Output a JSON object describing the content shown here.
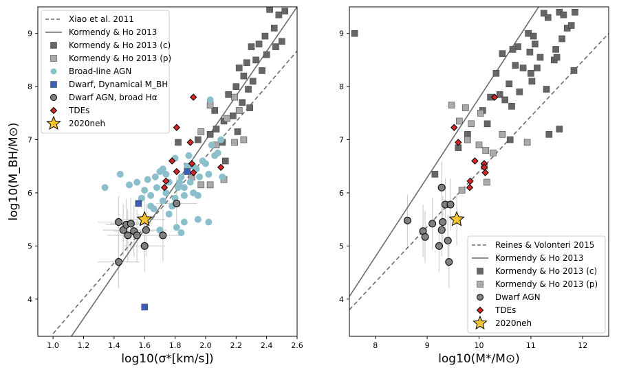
{
  "chart_data": [
    {
      "type": "scatter",
      "panel": "left",
      "xlabel": "log10(σ*[km/s])",
      "ylabel": "log10(M_BH/M⊙)",
      "xlim": [
        0.9,
        2.6
      ],
      "ylim": [
        3.3,
        9.5
      ],
      "xticks": [
        "1.0",
        "1.2",
        "1.4",
        "1.6",
        "1.8",
        "2.0",
        "2.2",
        "2.4",
        "2.6"
      ],
      "xtick_values": [
        1.0,
        1.2,
        1.4,
        1.6,
        1.8,
        2.0,
        2.2,
        2.4,
        2.6
      ],
      "yticks": [
        "4",
        "5",
        "6",
        "7",
        "8",
        "9"
      ],
      "ytick_values": [
        4,
        5,
        6,
        7,
        8,
        9
      ],
      "legend_position": "top-left",
      "lines": [
        {
          "name": "Xiao et al. 2011",
          "style": "dashed",
          "points": [
            [
              1.0,
              3.35
            ],
            [
              2.6,
              8.67
            ]
          ]
        },
        {
          "name": "Kormendy & Ho 2013",
          "style": "solid",
          "points": [
            [
              1.12,
              3.3
            ],
            [
              2.6,
              9.5
            ]
          ]
        }
      ],
      "series": [
        {
          "name": "Kormendy & Ho 2013 (c)",
          "marker": "square",
          "color": "#666666",
          "points": [
            [
              2.42,
              9.45
            ],
            [
              2.48,
              9.35
            ],
            [
              2.52,
              9.42
            ],
            [
              2.45,
              9.1
            ],
            [
              2.39,
              8.95
            ],
            [
              2.35,
              8.8
            ],
            [
              2.3,
              8.75
            ],
            [
              2.4,
              8.6
            ],
            [
              2.33,
              8.5
            ],
            [
              2.27,
              8.45
            ],
            [
              2.22,
              8.35
            ],
            [
              2.37,
              8.3
            ],
            [
              2.25,
              8.2
            ],
            [
              2.31,
              8.1
            ],
            [
              2.2,
              8.0
            ],
            [
              2.28,
              7.95
            ],
            [
              2.15,
              7.85
            ],
            [
              2.24,
              7.7
            ],
            [
              2.29,
              7.6
            ],
            [
              2.06,
              7.55
            ],
            [
              2.18,
              7.45
            ],
            [
              2.12,
              7.35
            ],
            [
              2.07,
              7.2
            ],
            [
              2.21,
              7.15
            ],
            [
              2.03,
              7.1
            ],
            [
              1.95,
              7.0
            ],
            [
              2.11,
              6.95
            ],
            [
              1.82,
              6.95
            ],
            [
              2.46,
              8.75
            ],
            [
              2.5,
              8.85
            ],
            [
              2.13,
              6.6
            ]
          ]
        },
        {
          "name": "Kormendy & Ho 2013 (p)",
          "marker": "square",
          "color": "#aaaaaa",
          "points": [
            [
              2.03,
              7.65
            ],
            [
              2.19,
              7.8
            ],
            [
              2.22,
              7.55
            ],
            [
              2.14,
              7.4
            ],
            [
              2.25,
              7.0
            ],
            [
              1.97,
              7.15
            ],
            [
              2.07,
              6.9
            ],
            [
              2.19,
              6.95
            ],
            [
              1.88,
              6.5
            ],
            [
              2.12,
              6.25
            ],
            [
              2.03,
              6.15
            ],
            [
              1.91,
              6.3
            ],
            [
              1.97,
              6.15
            ]
          ]
        },
        {
          "name": "Broad-line AGN",
          "marker": "circle",
          "color": "#8bbfcc",
          "points": [
            [
              1.34,
              6.1
            ],
            [
              1.44,
              6.35
            ],
            [
              1.5,
              6.15
            ],
            [
              1.55,
              6.2
            ],
            [
              1.6,
              6.05
            ],
            [
              1.62,
              6.25
            ],
            [
              1.64,
              5.95
            ],
            [
              1.66,
              5.7
            ],
            [
              1.68,
              6.1
            ],
            [
              1.7,
              6.4
            ],
            [
              1.72,
              5.85
            ],
            [
              1.74,
              6.0
            ],
            [
              1.76,
              6.2
            ],
            [
              1.78,
              5.75
            ],
            [
              1.8,
              5.9
            ],
            [
              1.82,
              6.1
            ],
            [
              1.84,
              6.3
            ],
            [
              1.86,
              5.95
            ],
            [
              1.88,
              6.5
            ],
            [
              1.9,
              6.2
            ],
            [
              1.92,
              6.0
            ],
            [
              1.94,
              6.45
            ],
            [
              1.96,
              6.3
            ],
            [
              1.98,
              6.6
            ],
            [
              2.0,
              6.55
            ],
            [
              2.02,
              6.35
            ],
            [
              2.04,
              6.9
            ],
            [
              2.06,
              6.7
            ],
            [
              2.08,
              6.75
            ],
            [
              2.1,
              7.0
            ],
            [
              1.76,
              5.6
            ],
            [
              1.7,
              5.3
            ],
            [
              1.86,
              5.45
            ],
            [
              1.95,
              5.5
            ],
            [
              2.02,
              5.45
            ],
            [
              1.81,
              5.35
            ],
            [
              1.84,
              5.25
            ],
            [
              1.72,
              6.45
            ],
            [
              1.83,
              6.2
            ],
            [
              1.86,
              6.1
            ],
            [
              1.89,
              6.7
            ],
            [
              1.58,
              5.9
            ],
            [
              1.64,
              5.75
            ],
            [
              1.74,
              6.35
            ],
            [
              2.11,
              6.3
            ],
            [
              1.92,
              6.5
            ],
            [
              1.8,
              6.65
            ],
            [
              2.03,
              7.75
            ],
            [
              1.95,
              5.95
            ],
            [
              1.67,
              6.3
            ]
          ]
        },
        {
          "name": "Dwarf, Dynamical M_BH",
          "marker": "square",
          "color": "#3b5fb5",
          "points": [
            [
              1.56,
              5.8
            ],
            [
              1.6,
              3.85
            ],
            [
              1.88,
              6.4
            ]
          ]
        },
        {
          "name": "Dwarf AGN, broad Hα",
          "marker": "circle",
          "color": "#808080",
          "points": [
            [
              1.43,
              5.45
            ],
            [
              1.46,
              5.3
            ],
            [
              1.48,
              5.4
            ],
            [
              1.49,
              5.2
            ],
            [
              1.51,
              5.42
            ],
            [
              1.53,
              5.28
            ],
            [
              1.55,
              5.2
            ],
            [
              1.6,
              5.0
            ],
            [
              1.61,
              5.3
            ],
            [
              1.72,
              5.2
            ],
            [
              1.81,
              5.8
            ],
            [
              1.43,
              4.7
            ]
          ]
        },
        {
          "name": "TDEs",
          "marker": "diamond",
          "color": "#d62728",
          "points": [
            [
              1.81,
              7.23
            ],
            [
              1.92,
              7.8
            ],
            [
              1.9,
              6.95
            ],
            [
              1.78,
              6.6
            ],
            [
              1.81,
              6.4
            ],
            [
              1.74,
              6.22
            ],
            [
              1.73,
              6.1
            ],
            [
              1.91,
              6.55
            ],
            [
              1.92,
              6.38
            ],
            [
              2.1,
              6.48
            ]
          ]
        },
        {
          "name": "2020neh",
          "marker": "star",
          "color": "#f4c430",
          "points": [
            [
              1.6,
              5.5
            ]
          ]
        }
      ]
    },
    {
      "type": "scatter",
      "panel": "right",
      "xlabel": "log10(M*/M⊙)",
      "ylabel": "",
      "xlim": [
        7.5,
        12.5
      ],
      "ylim": [
        3.3,
        9.5
      ],
      "xticks": [
        "8",
        "9",
        "10",
        "11",
        "12"
      ],
      "xtick_values": [
        8,
        9,
        10,
        11,
        12
      ],
      "yticks": [
        "4",
        "5",
        "6",
        "7",
        "8",
        "9"
      ],
      "ytick_values": [
        4,
        5,
        6,
        7,
        8,
        9
      ],
      "legend_position": "bottom-right",
      "lines": [
        {
          "name": "Reines & Volonteri 2015",
          "style": "dashed",
          "points": [
            [
              7.5,
              3.8
            ],
            [
              12.5,
              9.0
            ]
          ]
        },
        {
          "name": "Kormendy & Ho 2013",
          "style": "solid",
          "points": [
            [
              7.5,
              4.05
            ],
            [
              11.15,
              9.5
            ]
          ]
        }
      ],
      "series": [
        {
          "name": "Kormendy & Ho 2013 (c)",
          "marker": "square",
          "color": "#666666",
          "points": [
            [
              11.25,
              9.38
            ],
            [
              11.55,
              9.4
            ],
            [
              11.85,
              9.4
            ],
            [
              11.63,
              9.35
            ],
            [
              11.33,
              9.3
            ],
            [
              10.95,
              9.0
            ],
            [
              11.05,
              8.95
            ],
            [
              11.7,
              9.1
            ],
            [
              11.78,
              9.15
            ],
            [
              11.6,
              8.9
            ],
            [
              11.08,
              8.8
            ],
            [
              10.75,
              8.75
            ],
            [
              10.65,
              8.7
            ],
            [
              10.45,
              8.62
            ],
            [
              10.98,
              8.65
            ],
            [
              10.33,
              8.25
            ],
            [
              11.18,
              8.55
            ],
            [
              11.12,
              8.35
            ],
            [
              10.7,
              8.4
            ],
            [
              10.85,
              8.35
            ],
            [
              11.45,
              8.5
            ],
            [
              10.58,
              8.05
            ],
            [
              10.4,
              7.85
            ],
            [
              10.22,
              7.8
            ],
            [
              10.78,
              7.9
            ],
            [
              10.5,
              7.75
            ],
            [
              10.07,
              7.55
            ],
            [
              10.16,
              7.3
            ],
            [
              11.55,
              7.2
            ],
            [
              11.35,
              7.1
            ],
            [
              10.6,
              7.0
            ],
            [
              9.78,
              7.1
            ],
            [
              9.15,
              6.35
            ],
            [
              9.6,
              6.85
            ],
            [
              7.6,
              9.0
            ],
            [
              10.63,
              7.63
            ],
            [
              11.83,
              8.3
            ],
            [
              11.48,
              8.7
            ],
            [
              11.0,
              8.25
            ],
            [
              11.02,
              8.1
            ],
            [
              11.3,
              7.95
            ],
            [
              11.5,
              8.55
            ]
          ]
        },
        {
          "name": "Kormendy & Ho 2013 (p)",
          "marker": "square",
          "color": "#aaaaaa",
          "points": [
            [
              9.47,
              7.65
            ],
            [
              9.62,
              7.35
            ],
            [
              10.03,
              7.5
            ],
            [
              9.85,
              7.3
            ],
            [
              9.74,
              7.6
            ],
            [
              9.78,
              7.0
            ],
            [
              10.0,
              6.9
            ],
            [
              10.13,
              6.8
            ],
            [
              10.45,
              7.1
            ],
            [
              10.27,
              6.75
            ],
            [
              10.93,
              6.95
            ],
            [
              10.1,
              6.5
            ],
            [
              10.15,
              6.2
            ],
            [
              9.67,
              6.05
            ]
          ]
        },
        {
          "name": "Dwarf AGN",
          "marker": "circle",
          "color": "#808080",
          "points": [
            [
              8.62,
              5.48
            ],
            [
              8.92,
              5.28
            ],
            [
              8.96,
              5.17
            ],
            [
              9.1,
              5.42
            ],
            [
              9.23,
              5.0
            ],
            [
              9.28,
              5.3
            ],
            [
              9.3,
              5.45
            ],
            [
              9.35,
              5.78
            ],
            [
              9.4,
              5.1
            ],
            [
              9.42,
              4.7
            ],
            [
              9.45,
              5.78
            ],
            [
              9.28,
              6.1
            ]
          ]
        },
        {
          "name": "TDEs",
          "marker": "diamond",
          "color": "#d62728",
          "points": [
            [
              9.52,
              7.23
            ],
            [
              9.6,
              6.95
            ],
            [
              10.3,
              7.8
            ],
            [
              9.92,
              6.6
            ],
            [
              10.1,
              6.55
            ],
            [
              10.1,
              6.48
            ],
            [
              10.12,
              6.38
            ],
            [
              9.83,
              6.22
            ],
            [
              9.82,
              6.1
            ]
          ]
        },
        {
          "name": "2020neh",
          "marker": "star",
          "color": "#f4c430",
          "points": [
            [
              9.57,
              5.5
            ]
          ]
        }
      ]
    }
  ],
  "legends": {
    "left": [
      {
        "label": "Xiao et al. 2011",
        "kind": "dashed"
      },
      {
        "label": "Kormendy & Ho 2013",
        "kind": "solid"
      },
      {
        "label": "Kormendy & Ho 2013 (c)",
        "kind": "square",
        "color": "#666666"
      },
      {
        "label": "Kormendy & Ho 2013 (p)",
        "kind": "square",
        "color": "#aaaaaa"
      },
      {
        "label": "Broad-line AGN",
        "kind": "circle",
        "color": "#8bbfcc"
      },
      {
        "label": "Dwarf, Dynamical M_BH",
        "kind": "square",
        "color": "#3b5fb5"
      },
      {
        "label": "Dwarf AGN, broad Hα",
        "kind": "circle",
        "color": "#808080"
      },
      {
        "label": "TDEs",
        "kind": "diamond",
        "color": "#d62728"
      },
      {
        "label": "2020neh",
        "kind": "star",
        "color": "#f4c430"
      }
    ],
    "right": [
      {
        "label": "Reines & Volonteri 2015",
        "kind": "dashed"
      },
      {
        "label": "Kormendy & Ho 2013",
        "kind": "solid"
      },
      {
        "label": "Kormendy & Ho 2013 (c)",
        "kind": "square",
        "color": "#666666"
      },
      {
        "label": "Kormendy & Ho 2013 (p)",
        "kind": "square",
        "color": "#aaaaaa"
      },
      {
        "label": "Dwarf AGN",
        "kind": "circle",
        "color": "#808080"
      },
      {
        "label": "TDEs",
        "kind": "diamond",
        "color": "#d62728"
      },
      {
        "label": "2020neh",
        "kind": "star",
        "color": "#f4c430"
      }
    ]
  }
}
